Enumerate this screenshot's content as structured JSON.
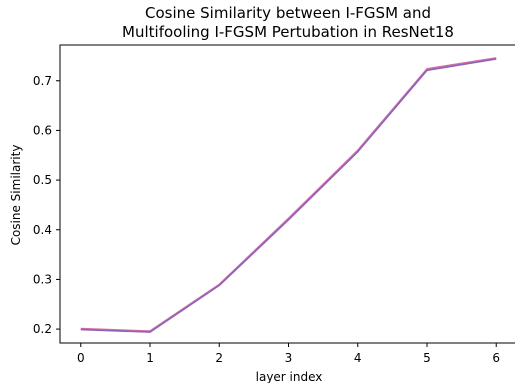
{
  "chart_data": {
    "type": "line",
    "title_lines": [
      "Cosine Similarity between I-FGSM and",
      "Multifooling I-FGSM Pertubation in ResNet18"
    ],
    "xlabel": "layer index",
    "ylabel": "Cosine Similarity",
    "x": [
      0,
      1,
      2,
      3,
      4,
      5,
      6
    ],
    "xticks": [
      "0",
      "1",
      "2",
      "3",
      "4",
      "5",
      "6"
    ],
    "yticks": [
      "0.2",
      "0.3",
      "0.4",
      "0.5",
      "0.6",
      "0.7"
    ],
    "xlim": [
      -0.3,
      6.3
    ],
    "ylim": [
      0.172,
      0.772
    ],
    "grid": false,
    "series": [
      {
        "values": [
          0.201,
          0.196,
          0.29,
          0.423,
          0.56,
          0.724,
          0.746
        ],
        "color": "#d26ea9"
      },
      {
        "values": [
          0.199,
          0.194,
          0.288,
          0.42,
          0.557,
          0.721,
          0.744
        ],
        "color": "#8e63b7"
      }
    ]
  }
}
